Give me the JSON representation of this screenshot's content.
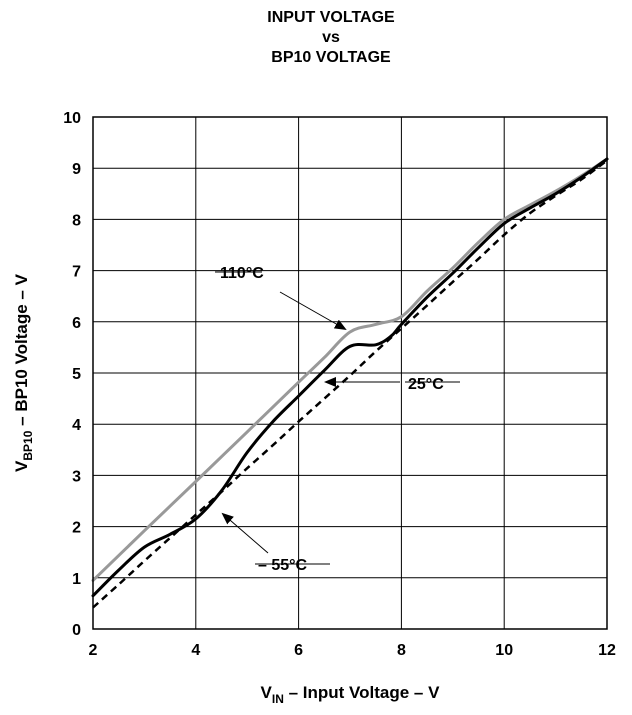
{
  "chart_data": {
    "type": "line",
    "title_lines": [
      "INPUT VOLTAGE",
      "vs",
      "BP10 VOLTAGE"
    ],
    "xlabel": {
      "main": "V",
      "sub": "IN",
      "rest": " – Input Voltage – V"
    },
    "ylabel": {
      "main": "V",
      "sub": "BP10",
      "rest": " – BP10 Voltage – V"
    },
    "xlim": [
      2,
      12
    ],
    "ylim": [
      0,
      10
    ],
    "x_ticks": [
      2,
      4,
      6,
      8,
      10,
      12
    ],
    "y_ticks": [
      0,
      1,
      2,
      3,
      4,
      5,
      6,
      7,
      8,
      9,
      10
    ],
    "grid": true,
    "series": [
      {
        "name": "110°C",
        "color": "#999999",
        "style": "solid",
        "points": [
          [
            2,
            0.95
          ],
          [
            3,
            1.92
          ],
          [
            4,
            2.88
          ],
          [
            5,
            3.85
          ],
          [
            6,
            4.82
          ],
          [
            6.5,
            5.3
          ],
          [
            7,
            5.8
          ],
          [
            7.5,
            5.95
          ],
          [
            8,
            6.1
          ],
          [
            8.5,
            6.6
          ],
          [
            9,
            7.05
          ],
          [
            9.5,
            7.55
          ],
          [
            10,
            8.0
          ],
          [
            10.5,
            8.28
          ],
          [
            11,
            8.55
          ],
          [
            11.5,
            8.85
          ],
          [
            12,
            9.18
          ]
        ]
      },
      {
        "name": "25°C",
        "color": "#000000",
        "style": "dashed",
        "points": [
          [
            2,
            0.42
          ],
          [
            2.5,
            0.87
          ],
          [
            3,
            1.33
          ],
          [
            3.5,
            1.78
          ],
          [
            4,
            2.23
          ],
          [
            4.5,
            2.68
          ],
          [
            5,
            3.14
          ],
          [
            5.5,
            3.59
          ],
          [
            6,
            4.05
          ],
          [
            6.5,
            4.5
          ],
          [
            7,
            4.95
          ],
          [
            7.5,
            5.42
          ],
          [
            8,
            5.87
          ],
          [
            8.5,
            6.32
          ],
          [
            9,
            6.78
          ],
          [
            9.5,
            7.23
          ],
          [
            10,
            7.7
          ],
          [
            10.5,
            8.12
          ],
          [
            11,
            8.46
          ],
          [
            11.5,
            8.78
          ],
          [
            12,
            9.15
          ]
        ]
      },
      {
        "name": "– 55°C",
        "color": "#000000",
        "style": "solid",
        "points": [
          [
            2,
            0.65
          ],
          [
            2.5,
            1.15
          ],
          [
            3,
            1.6
          ],
          [
            3.5,
            1.85
          ],
          [
            4,
            2.15
          ],
          [
            4.5,
            2.7
          ],
          [
            5,
            3.45
          ],
          [
            5.5,
            4.05
          ],
          [
            6,
            4.55
          ],
          [
            6.5,
            5.05
          ],
          [
            7,
            5.52
          ],
          [
            7.5,
            5.55
          ],
          [
            7.8,
            5.72
          ],
          [
            8,
            5.95
          ],
          [
            8.5,
            6.48
          ],
          [
            9,
            6.95
          ],
          [
            9.5,
            7.45
          ],
          [
            10,
            7.92
          ],
          [
            10.5,
            8.22
          ],
          [
            11,
            8.5
          ],
          [
            11.5,
            8.82
          ],
          [
            12,
            9.18
          ]
        ]
      }
    ],
    "annotations": [
      {
        "label": "110°C",
        "series": "110°C"
      },
      {
        "label": "25°C",
        "series": "25°C"
      },
      {
        "label": "– 55°C",
        "series": "– 55°C"
      }
    ]
  }
}
